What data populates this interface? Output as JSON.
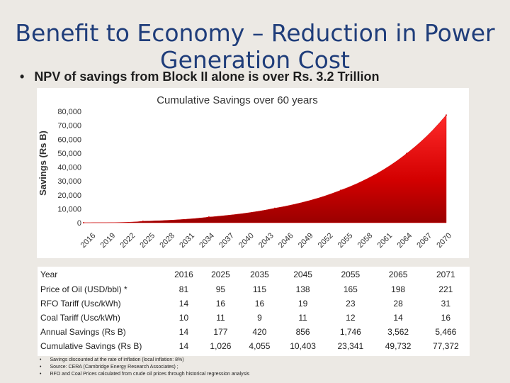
{
  "slide": {
    "title": "Benefit to Economy – Reduction in Power Generation Cost",
    "bullet": "NPV of savings from Block II alone is over Rs. 3.2 Trillion"
  },
  "chart_data": {
    "type": "area",
    "title": "Cumulative Savings over 60 years",
    "xlabel": "",
    "ylabel": "Savings (Rs B)",
    "ylim": [
      0,
      80000
    ],
    "yticks": [
      0,
      10000,
      20000,
      30000,
      40000,
      50000,
      60000,
      70000,
      80000
    ],
    "ytick_labels": [
      "0",
      "10,000",
      "20,000",
      "30,000",
      "40,000",
      "50,000",
      "60,000",
      "70,000",
      "80,000"
    ],
    "x_ticks": [
      "2016",
      "2019",
      "2022",
      "2025",
      "2028",
      "2031",
      "2034",
      "2037",
      "2040",
      "2043",
      "2046",
      "2049",
      "2052",
      "2055",
      "2058",
      "2061",
      "2064",
      "2067",
      "2070"
    ],
    "x": [
      2016,
      2025,
      2035,
      2045,
      2055,
      2065,
      2071
    ],
    "series": [
      {
        "name": "Cumulative Savings",
        "color": "#cc0000",
        "values": [
          14,
          1026,
          4055,
          10403,
          23341,
          49732,
          77372
        ]
      }
    ]
  },
  "table": {
    "header_label": "Year",
    "years": [
      "2016",
      "2025",
      "2035",
      "2045",
      "2055",
      "2065",
      "2071"
    ],
    "rows": [
      {
        "label": "Price of Oil (USD/bbl) *",
        "values": [
          "81",
          "95",
          "115",
          "138",
          "165",
          "198",
          "221"
        ]
      },
      {
        "label": "RFO Tariff (Usc/kWh)",
        "values": [
          "14",
          "16",
          "16",
          "19",
          "23",
          "28",
          "31"
        ]
      },
      {
        "label": "Coal Tariff (Usc/kWh)",
        "values": [
          "10",
          "11",
          "9",
          "11",
          "12",
          "14",
          "16"
        ]
      },
      {
        "label": "Annual Savings (Rs B)",
        "values": [
          "14",
          "177",
          "420",
          "856",
          "1,746",
          "3,562",
          "5,466"
        ]
      },
      {
        "label": "Cumulative Savings (Rs B)",
        "values": [
          "14",
          "1,026",
          "4,055",
          "10,403",
          "23,341",
          "49,732",
          "77,372"
        ]
      }
    ]
  },
  "notes": [
    "Savings discounted at the rate of inflation (local inflation: 8%)",
    "Source: CERA (Cambridge Energy Research Associates) ;",
    "RFO and Coal Prices calculated from crude oil prices through historical regression analysis"
  ]
}
